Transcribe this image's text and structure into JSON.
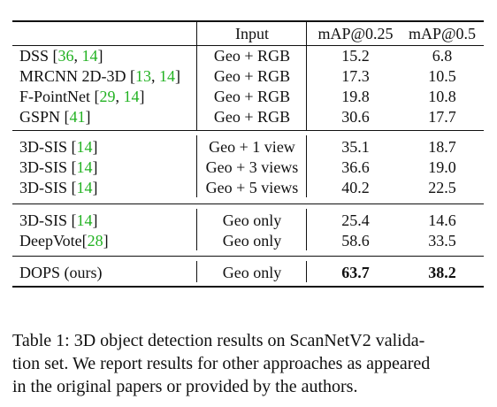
{
  "table": {
    "header": {
      "method": "",
      "input": "Input",
      "map25": "mAP@0.25",
      "map5": "mAP@0.5"
    },
    "rows": [
      {
        "method": "DSS ",
        "open": "[",
        "cite_a": "36",
        "sep": ", ",
        "cite_b": "14",
        "close": "]",
        "input": "Geo + RGB",
        "map25": "15.2",
        "map5": "6.8"
      },
      {
        "method": "MRCNN 2D-3D ",
        "open": "[",
        "cite_a": "13",
        "sep": ", ",
        "cite_b": "14",
        "close": "]",
        "input": "Geo + RGB",
        "map25": "17.3",
        "map5": "10.5"
      },
      {
        "method": "F-PointNet ",
        "open": "[",
        "cite_a": "29",
        "sep": ", ",
        "cite_b": "14",
        "close": "]",
        "input": "Geo + RGB",
        "map25": "19.8",
        "map5": "10.8"
      },
      {
        "method": "GSPN ",
        "open": "[",
        "cite_a": "41",
        "close": "]",
        "input": "Geo + RGB",
        "map25": "30.6",
        "map5": "17.7"
      },
      {
        "method": "3D-SIS ",
        "open": "[",
        "cite_a": "14",
        "close": "]",
        "input": "Geo + 1 view",
        "map25": "35.1",
        "map5": "18.7"
      },
      {
        "method": "3D-SIS ",
        "open": "[",
        "cite_a": "14",
        "close": "]",
        "input": "Geo + 3 views",
        "map25": "36.6",
        "map5": "19.0"
      },
      {
        "method": "3D-SIS ",
        "open": "[",
        "cite_a": "14",
        "close": "]",
        "input": "Geo + 5 views",
        "map25": "40.2",
        "map5": "22.5"
      },
      {
        "method": "3D-SIS ",
        "open": "[",
        "cite_a": "14",
        "close": "]",
        "input": "Geo only",
        "map25": "25.4",
        "map5": "14.6"
      },
      {
        "method": "DeepVote",
        "open": "[",
        "cite_a": "28",
        "close": "]",
        "input": "Geo only",
        "map25": "58.6",
        "map5": "33.5"
      },
      {
        "method": "DOPS (ours)",
        "input": "Geo only",
        "map25": "63.7",
        "map5": "38.2"
      }
    ]
  },
  "caption": {
    "line1": "Table 1: 3D object detection results on ScanNetV2 valida-",
    "line2": "tion set. We report results for other approaches as appeared",
    "line3": "in the original papers or provided by the authors."
  }
}
